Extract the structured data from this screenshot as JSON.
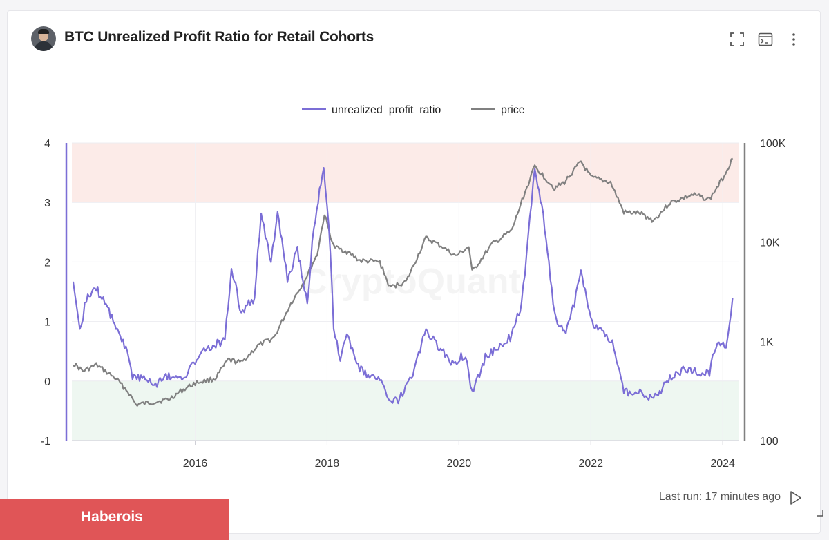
{
  "header": {
    "title": "BTC Unrealized Profit Ratio for Retail Cohorts",
    "icons": [
      "fullscreen-icon",
      "console-icon",
      "more-vert-icon"
    ]
  },
  "footer": {
    "last_run": "Last run: 17 minutes ago",
    "brand": "Haberois"
  },
  "watermark": "CryptoQuant",
  "colors": {
    "ratio": "#7b6ed6",
    "price": "#808080",
    "overheat_band": "#fcebe8",
    "undervalued_band": "#eef7f1"
  },
  "chart_data": {
    "type": "line",
    "legend": [
      "unrealized_profit_ratio",
      "price"
    ],
    "legend_position": "top",
    "x_ticks": [
      "2016",
      "2018",
      "2020",
      "2022",
      "2024"
    ],
    "x_range": [
      2014.13,
      2024.25
    ],
    "y_left": {
      "ticks": [
        "4",
        "3",
        "2",
        "1",
        "0",
        "-1"
      ],
      "range": [
        -1,
        4
      ]
    },
    "y_right": {
      "ticks": [
        "100K",
        "10K",
        "1K",
        "100"
      ],
      "range": [
        100,
        100000
      ],
      "scale": "log"
    },
    "bands": [
      {
        "from": 3,
        "to": 4,
        "color": "#fcebe8"
      },
      {
        "from": -1,
        "to": 0,
        "color": "#eef7f1"
      }
    ],
    "series": [
      {
        "name": "unrealized_profit_ratio",
        "axis": "left",
        "points": [
          [
            2014.15,
            1.6
          ],
          [
            2014.25,
            0.8
          ],
          [
            2014.35,
            1.4
          ],
          [
            2014.5,
            1.55
          ],
          [
            2014.65,
            1.3
          ],
          [
            2014.8,
            0.9
          ],
          [
            2014.95,
            0.55
          ],
          [
            2015.05,
            0.1
          ],
          [
            2015.2,
            0.05
          ],
          [
            2015.4,
            -0.05
          ],
          [
            2015.6,
            0.1
          ],
          [
            2015.8,
            0.0
          ],
          [
            2016.0,
            0.35
          ],
          [
            2016.2,
            0.55
          ],
          [
            2016.45,
            0.7
          ],
          [
            2016.55,
            1.9
          ],
          [
            2016.7,
            1.15
          ],
          [
            2016.9,
            1.4
          ],
          [
            2017.0,
            2.85
          ],
          [
            2017.15,
            2.0
          ],
          [
            2017.25,
            2.8
          ],
          [
            2017.4,
            1.7
          ],
          [
            2017.55,
            2.2
          ],
          [
            2017.7,
            1.3
          ],
          [
            2017.8,
            2.6
          ],
          [
            2017.95,
            3.6
          ],
          [
            2018.05,
            2.2
          ],
          [
            2018.1,
            0.9
          ],
          [
            2018.2,
            0.4
          ],
          [
            2018.3,
            0.8
          ],
          [
            2018.45,
            0.25
          ],
          [
            2018.6,
            0.1
          ],
          [
            2018.8,
            0.05
          ],
          [
            2018.95,
            -0.4
          ],
          [
            2019.1,
            -0.3
          ],
          [
            2019.3,
            0.1
          ],
          [
            2019.5,
            0.85
          ],
          [
            2019.7,
            0.55
          ],
          [
            2019.9,
            0.3
          ],
          [
            2020.1,
            0.45
          ],
          [
            2020.2,
            -0.2
          ],
          [
            2020.4,
            0.4
          ],
          [
            2020.6,
            0.55
          ],
          [
            2020.8,
            0.75
          ],
          [
            2020.95,
            1.3
          ],
          [
            2021.05,
            2.4
          ],
          [
            2021.15,
            3.6
          ],
          [
            2021.3,
            2.6
          ],
          [
            2021.45,
            1.1
          ],
          [
            2021.6,
            0.8
          ],
          [
            2021.75,
            1.3
          ],
          [
            2021.85,
            1.9
          ],
          [
            2022.0,
            1.0
          ],
          [
            2022.15,
            0.9
          ],
          [
            2022.35,
            0.6
          ],
          [
            2022.5,
            -0.2
          ],
          [
            2022.7,
            -0.15
          ],
          [
            2022.9,
            -0.3
          ],
          [
            2023.0,
            -0.25
          ],
          [
            2023.2,
            0.05
          ],
          [
            2023.4,
            0.2
          ],
          [
            2023.6,
            0.15
          ],
          [
            2023.8,
            0.15
          ],
          [
            2023.9,
            0.6
          ],
          [
            2024.05,
            0.6
          ],
          [
            2024.15,
            1.4
          ]
        ]
      },
      {
        "name": "price",
        "axis": "right",
        "points": [
          [
            2014.15,
            600
          ],
          [
            2014.3,
            500
          ],
          [
            2014.5,
            580
          ],
          [
            2014.8,
            420
          ],
          [
            2015.0,
            300
          ],
          [
            2015.1,
            230
          ],
          [
            2015.3,
            240
          ],
          [
            2015.6,
            260
          ],
          [
            2015.8,
            320
          ],
          [
            2016.0,
            380
          ],
          [
            2016.3,
            420
          ],
          [
            2016.5,
            650
          ],
          [
            2016.7,
            610
          ],
          [
            2016.95,
            900
          ],
          [
            2017.2,
            1100
          ],
          [
            2017.45,
            2400
          ],
          [
            2017.65,
            4000
          ],
          [
            2017.85,
            7500
          ],
          [
            2017.96,
            19000
          ],
          [
            2018.1,
            9000
          ],
          [
            2018.3,
            8000
          ],
          [
            2018.5,
            6500
          ],
          [
            2018.8,
            6300
          ],
          [
            2018.95,
            3500
          ],
          [
            2019.2,
            4000
          ],
          [
            2019.5,
            11000
          ],
          [
            2019.75,
            9000
          ],
          [
            2019.95,
            7200
          ],
          [
            2020.15,
            9000
          ],
          [
            2020.2,
            5000
          ],
          [
            2020.5,
            9500
          ],
          [
            2020.8,
            13000
          ],
          [
            2020.98,
            29000
          ],
          [
            2021.15,
            58000
          ],
          [
            2021.45,
            35000
          ],
          [
            2021.6,
            40000
          ],
          [
            2021.85,
            65000
          ],
          [
            2022.0,
            45000
          ],
          [
            2022.3,
            40000
          ],
          [
            2022.5,
            20000
          ],
          [
            2022.75,
            19500
          ],
          [
            2022.95,
            16500
          ],
          [
            2023.2,
            25000
          ],
          [
            2023.55,
            30000
          ],
          [
            2023.8,
            27000
          ],
          [
            2024.0,
            44000
          ],
          [
            2024.15,
            70000
          ]
        ]
      }
    ]
  }
}
